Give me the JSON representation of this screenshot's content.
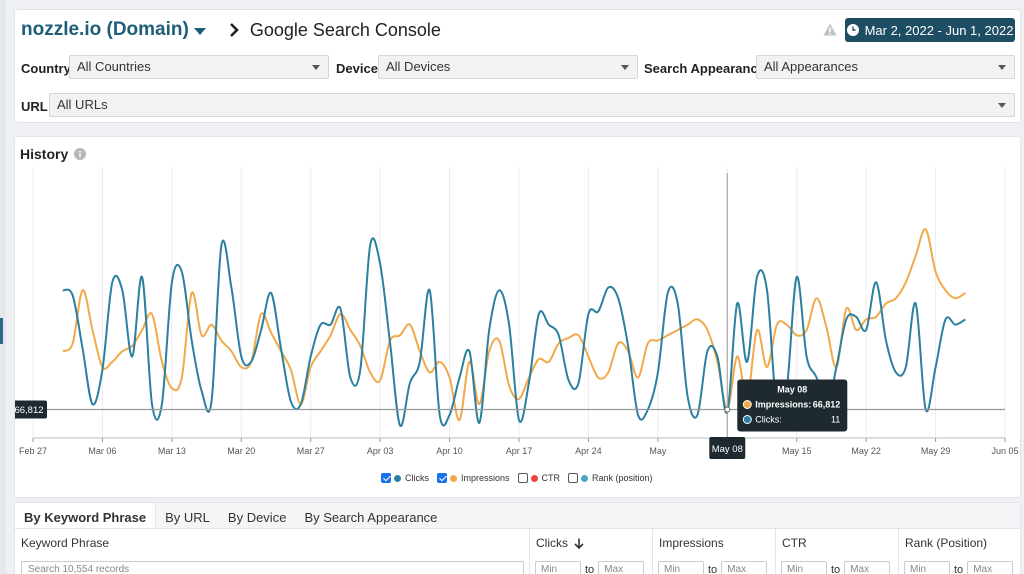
{
  "header": {
    "domain": "nozzle.io (Domain)",
    "source": "Google Search Console",
    "date_range": "Mar 2, 2022 - Jun 1, 2022"
  },
  "filters": {
    "country": {
      "label": "Country",
      "value": "All Countries"
    },
    "device": {
      "label": "Device",
      "value": "All Devices"
    },
    "search_appearance": {
      "label": "Search Appearance",
      "value": "All Appearances"
    },
    "url": {
      "label": "URL",
      "value": "All URLs"
    }
  },
  "history": {
    "title": "History",
    "crosshair_value": "66,812",
    "crosshair_date": "May 08",
    "tooltip": {
      "date": "May 08",
      "rows": [
        {
          "label": "Impressions:",
          "value": "66,812",
          "color": "#f2a94a"
        },
        {
          "label": "Clicks:",
          "value": "11",
          "color": "#2b7fa0"
        }
      ]
    },
    "legend": [
      {
        "label": "Clicks",
        "checked": true,
        "color": "#2b7fa0"
      },
      {
        "label": "Impressions",
        "checked": true,
        "color": "#f2a94a"
      },
      {
        "label": "CTR",
        "checked": false,
        "color": "#e8453c"
      },
      {
        "label": "Rank (position)",
        "checked": false,
        "color": "#4aa6c8"
      }
    ]
  },
  "chart_data": {
    "type": "line",
    "x_ticks": [
      "Feb 27",
      "Mar 06",
      "Mar 13",
      "Mar 20",
      "Mar 27",
      "Apr 03",
      "Apr 10",
      "Apr 17",
      "Apr 24",
      "May",
      "May 08",
      "May 15",
      "May 22",
      "May 29",
      "Jun 05"
    ],
    "x": [
      "2022-03-02",
      "2022-03-03",
      "2022-03-04",
      "2022-03-05",
      "2022-03-06",
      "2022-03-07",
      "2022-03-08",
      "2022-03-09",
      "2022-03-10",
      "2022-03-11",
      "2022-03-12",
      "2022-03-13",
      "2022-03-14",
      "2022-03-15",
      "2022-03-16",
      "2022-03-17",
      "2022-03-18",
      "2022-03-19",
      "2022-03-20",
      "2022-03-21",
      "2022-03-22",
      "2022-03-23",
      "2022-03-24",
      "2022-03-25",
      "2022-03-26",
      "2022-03-27",
      "2022-03-28",
      "2022-03-29",
      "2022-03-30",
      "2022-03-31",
      "2022-04-01",
      "2022-04-02",
      "2022-04-03",
      "2022-04-04",
      "2022-04-05",
      "2022-04-06",
      "2022-04-07",
      "2022-04-08",
      "2022-04-09",
      "2022-04-10",
      "2022-04-11",
      "2022-04-12",
      "2022-04-13",
      "2022-04-14",
      "2022-04-15",
      "2022-04-16",
      "2022-04-17",
      "2022-04-18",
      "2022-04-19",
      "2022-04-20",
      "2022-04-21",
      "2022-04-22",
      "2022-04-23",
      "2022-04-24",
      "2022-04-25",
      "2022-04-26",
      "2022-04-27",
      "2022-04-28",
      "2022-04-29",
      "2022-04-30",
      "2022-05-01",
      "2022-05-02",
      "2022-05-03",
      "2022-05-04",
      "2022-05-05",
      "2022-05-06",
      "2022-05-07",
      "2022-05-08",
      "2022-05-09",
      "2022-05-10",
      "2022-05-11",
      "2022-05-12",
      "2022-05-13",
      "2022-05-14",
      "2022-05-15",
      "2022-05-16",
      "2022-05-17",
      "2022-05-18",
      "2022-05-19",
      "2022-05-20",
      "2022-05-21",
      "2022-05-22",
      "2022-05-23",
      "2022-05-24",
      "2022-05-25",
      "2022-05-26",
      "2022-05-27",
      "2022-05-28",
      "2022-05-29",
      "2022-05-30",
      "2022-05-31",
      "2022-06-01"
    ],
    "series": [
      {
        "name": "Clicks",
        "color": "#2b7fa0",
        "values": [
          55,
          53,
          33,
          12,
          25,
          58,
          55,
          30,
          60,
          12,
          12,
          58,
          62,
          36,
          17,
          13,
          72,
          56,
          30,
          28,
          40,
          54,
          33,
          13,
          12,
          30,
          42,
          42,
          48,
          22,
          25,
          72,
          65,
          35,
          4,
          20,
          28,
          55,
          8,
          8,
          22,
          32,
          5,
          40,
          55,
          42,
          6,
          20,
          46,
          42,
          38,
          21,
          20,
          46,
          47,
          56,
          52,
          34,
          8,
          10,
          24,
          54,
          50,
          15,
          8,
          32,
          30,
          9,
          50,
          28,
          60,
          55,
          10,
          18,
          60,
          30,
          22,
          10,
          26,
          44,
          45,
          40,
          58,
          36,
          24,
          26,
          50,
          10,
          26,
          44,
          42,
          44
        ]
      },
      {
        "name": "Impressions",
        "color": "#f2a94a",
        "values": [
          32,
          35,
          55,
          40,
          26,
          28,
          32,
          34,
          40,
          46,
          28,
          18,
          22,
          54,
          38,
          42,
          36,
          32,
          26,
          28,
          46,
          39,
          32,
          25,
          12,
          26,
          32,
          38,
          46,
          40,
          34,
          24,
          21,
          36,
          38,
          42,
          32,
          24,
          28,
          22,
          6,
          28,
          12,
          32,
          36,
          19,
          14,
          22,
          29,
          28,
          35,
          37,
          38,
          30,
          22,
          24,
          35,
          32,
          22,
          35,
          36,
          38,
          40,
          42,
          44,
          40,
          28,
          10,
          30,
          14,
          40,
          26,
          42,
          42,
          38,
          40,
          52,
          41,
          26,
          48,
          40,
          44,
          45,
          50,
          52,
          58,
          68,
          78,
          62,
          55,
          52,
          54
        ]
      }
    ],
    "ylim": [
      0,
      100
    ],
    "crosshair": {
      "x": "2022-05-08",
      "impressions": 66812,
      "clicks": 11
    },
    "legend_position": "bottom",
    "grid": "vertical"
  },
  "table": {
    "tabs": [
      "By Keyword Phrase",
      "By URL",
      "By Device",
      "By Search Appearance"
    ],
    "columns": [
      {
        "label": "Keyword Phrase",
        "search_placeholder": "Search 10,554 records"
      },
      {
        "label": "Clicks",
        "sorted": true
      },
      {
        "label": "Impressions"
      },
      {
        "label": "CTR"
      },
      {
        "label": "Rank (Position)"
      }
    ],
    "min_placeholder": "Min",
    "max_placeholder": "Max",
    "to_label": "to"
  }
}
